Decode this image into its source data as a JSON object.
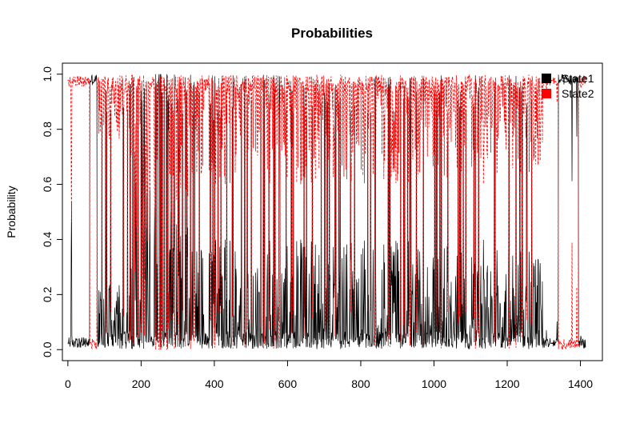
{
  "chart_data": {
    "type": "line",
    "title": "Probabilities",
    "xlabel": "",
    "ylabel": "Probability",
    "xlim": [
      -15,
      1460
    ],
    "ylim": [
      -0.04,
      1.04
    ],
    "x_ticks": [
      0,
      200,
      400,
      600,
      800,
      1000,
      1200,
      1400
    ],
    "x_tick_labels": [
      "0",
      "200",
      "400",
      "600",
      "800",
      "1000",
      "1200",
      "1400"
    ],
    "y_ticks": [
      0.0,
      0.2,
      0.4,
      0.6,
      0.8,
      1.0
    ],
    "y_tick_labels": [
      "0.0",
      "0.2",
      "0.4",
      "0.6",
      "0.8",
      "1.0"
    ],
    "grid": false,
    "legend_position": "top-right",
    "n_points": 1415,
    "series": [
      {
        "name": "State1",
        "color": "#000000",
        "line_style": "solid",
        "description": "probability of state 1 per observation index",
        "segments": [
          {
            "x_start": 0,
            "x_end": 8,
            "level": 0.02
          },
          {
            "x_start": 8,
            "x_end": 14,
            "level": 0.35
          },
          {
            "x_start": 14,
            "x_end": 60,
            "level": 0.05
          },
          {
            "x_start": 60,
            "x_end": 80,
            "level": 0.97
          },
          {
            "x_start": 80,
            "x_end": 170,
            "level": 0.15
          },
          {
            "x_start": 170,
            "x_end": 240,
            "level": 0.45
          },
          {
            "x_start": 240,
            "x_end": 275,
            "level": 0.9
          },
          {
            "x_start": 275,
            "x_end": 330,
            "level": 0.35
          },
          {
            "x_start": 330,
            "x_end": 1300,
            "level": 0.25
          },
          {
            "x_start": 1300,
            "x_end": 1340,
            "level": 0.05
          },
          {
            "x_start": 1340,
            "x_end": 1395,
            "level": 0.98
          },
          {
            "x_start": 1395,
            "x_end": 1415,
            "level": 0.02
          }
        ]
      },
      {
        "name": "State2",
        "color": "#ff0000",
        "line_style": "dashed",
        "description": "complement of State1 (1 - State1)"
      }
    ]
  }
}
